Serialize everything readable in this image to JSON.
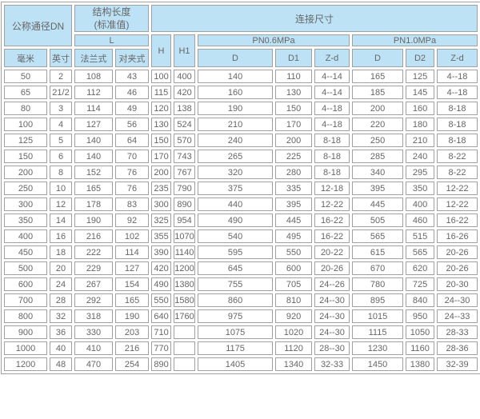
{
  "table": {
    "header": {
      "dn": "公称通径DN",
      "mm": "毫米",
      "inch": "英寸",
      "structure_length_line1": "结构长度",
      "structure_length_line2": "(标准值)",
      "L": "L",
      "flange": "法兰式",
      "wafer": "对夹式",
      "H": "H",
      "H1": "H1",
      "connection": "连接尺寸",
      "pn06": "PN0.6MPa",
      "pn10": "PN1.0MPa",
      "D": "D",
      "D1": "D1",
      "D2": "D2",
      "Zd": "Z-d"
    },
    "rows": [
      [
        "50",
        "2",
        "108",
        "43",
        "100",
        "400",
        "140",
        "110",
        "4--14",
        "165",
        "125",
        "4--18"
      ],
      [
        "65",
        "21/2",
        "112",
        "46",
        "115",
        "420",
        "160",
        "130",
        "4--14",
        "185",
        "145",
        "4--18"
      ],
      [
        "80",
        "3",
        "114",
        "49",
        "120",
        "138",
        "190",
        "150",
        "4--18",
        "200",
        "160",
        "8-18"
      ],
      [
        "100",
        "4",
        "127",
        "56",
        "130",
        "524",
        "210",
        "170",
        "4--18",
        "220",
        "180",
        "8-18"
      ],
      [
        "125",
        "5",
        "140",
        "64",
        "150",
        "570",
        "240",
        "200",
        "8-18",
        "250",
        "210",
        "8-18"
      ],
      [
        "150",
        "6",
        "140",
        "70",
        "170",
        "743",
        "265",
        "225",
        "8-18",
        "285",
        "240",
        "8-22"
      ],
      [
        "200",
        "8",
        "152",
        "76",
        "200",
        "767",
        "320",
        "280",
        "8-18",
        "340",
        "295",
        "8-22"
      ],
      [
        "250",
        "10",
        "165",
        "76",
        "235",
        "790",
        "375",
        "335",
        "12-18",
        "395",
        "350",
        "12-22"
      ],
      [
        "300",
        "12",
        "178",
        "83",
        "300",
        "890",
        "440",
        "395",
        "12-22",
        "445",
        "400",
        "12-22"
      ],
      [
        "350",
        "14",
        "190",
        "92",
        "325",
        "954",
        "490",
        "445",
        "16-22",
        "505",
        "460",
        "16-22"
      ],
      [
        "400",
        "16",
        "216",
        "102",
        "355",
        "1070",
        "540",
        "495",
        "16-22",
        "565",
        "515",
        "16-26"
      ],
      [
        "450",
        "18",
        "222",
        "114",
        "390",
        "1140",
        "595",
        "550",
        "20-22",
        "615",
        "565",
        "20-26"
      ],
      [
        "500",
        "20",
        "229",
        "127",
        "420",
        "1200",
        "645",
        "600",
        "20-26",
        "670",
        "620",
        "20-26"
      ],
      [
        "600",
        "24",
        "267",
        "154",
        "490",
        "1380",
        "755",
        "705",
        "24--26",
        "780",
        "725",
        "20-30"
      ],
      [
        "700",
        "28",
        "292",
        "165",
        "550",
        "1580",
        "860",
        "810",
        "24--30",
        "895",
        "840",
        "24--30"
      ],
      [
        "800",
        "32",
        "318",
        "190",
        "640",
        "1760",
        "975",
        "920",
        "24--30",
        "1015",
        "950",
        "24--33"
      ],
      [
        "900",
        "36",
        "330",
        "203",
        "710",
        "",
        "1075",
        "1020",
        "24--30",
        "1115",
        "1050",
        "28-33"
      ],
      [
        "1000",
        "40",
        "410",
        "216",
        "770",
        "",
        "1175",
        "1120",
        "28--30",
        "1230",
        "1160",
        "28-36"
      ],
      [
        "1200",
        "48",
        "470",
        "254",
        "890",
        "",
        "1405",
        "1340",
        "32-33",
        "1450",
        "1380",
        "32-39"
      ]
    ],
    "left_aligned_wafer_rows_start": 11
  },
  "colors": {
    "header_bg": "#bde2f5",
    "border": "#a0a0a0",
    "text": "#666666",
    "cell_bg": "#ffffff"
  }
}
